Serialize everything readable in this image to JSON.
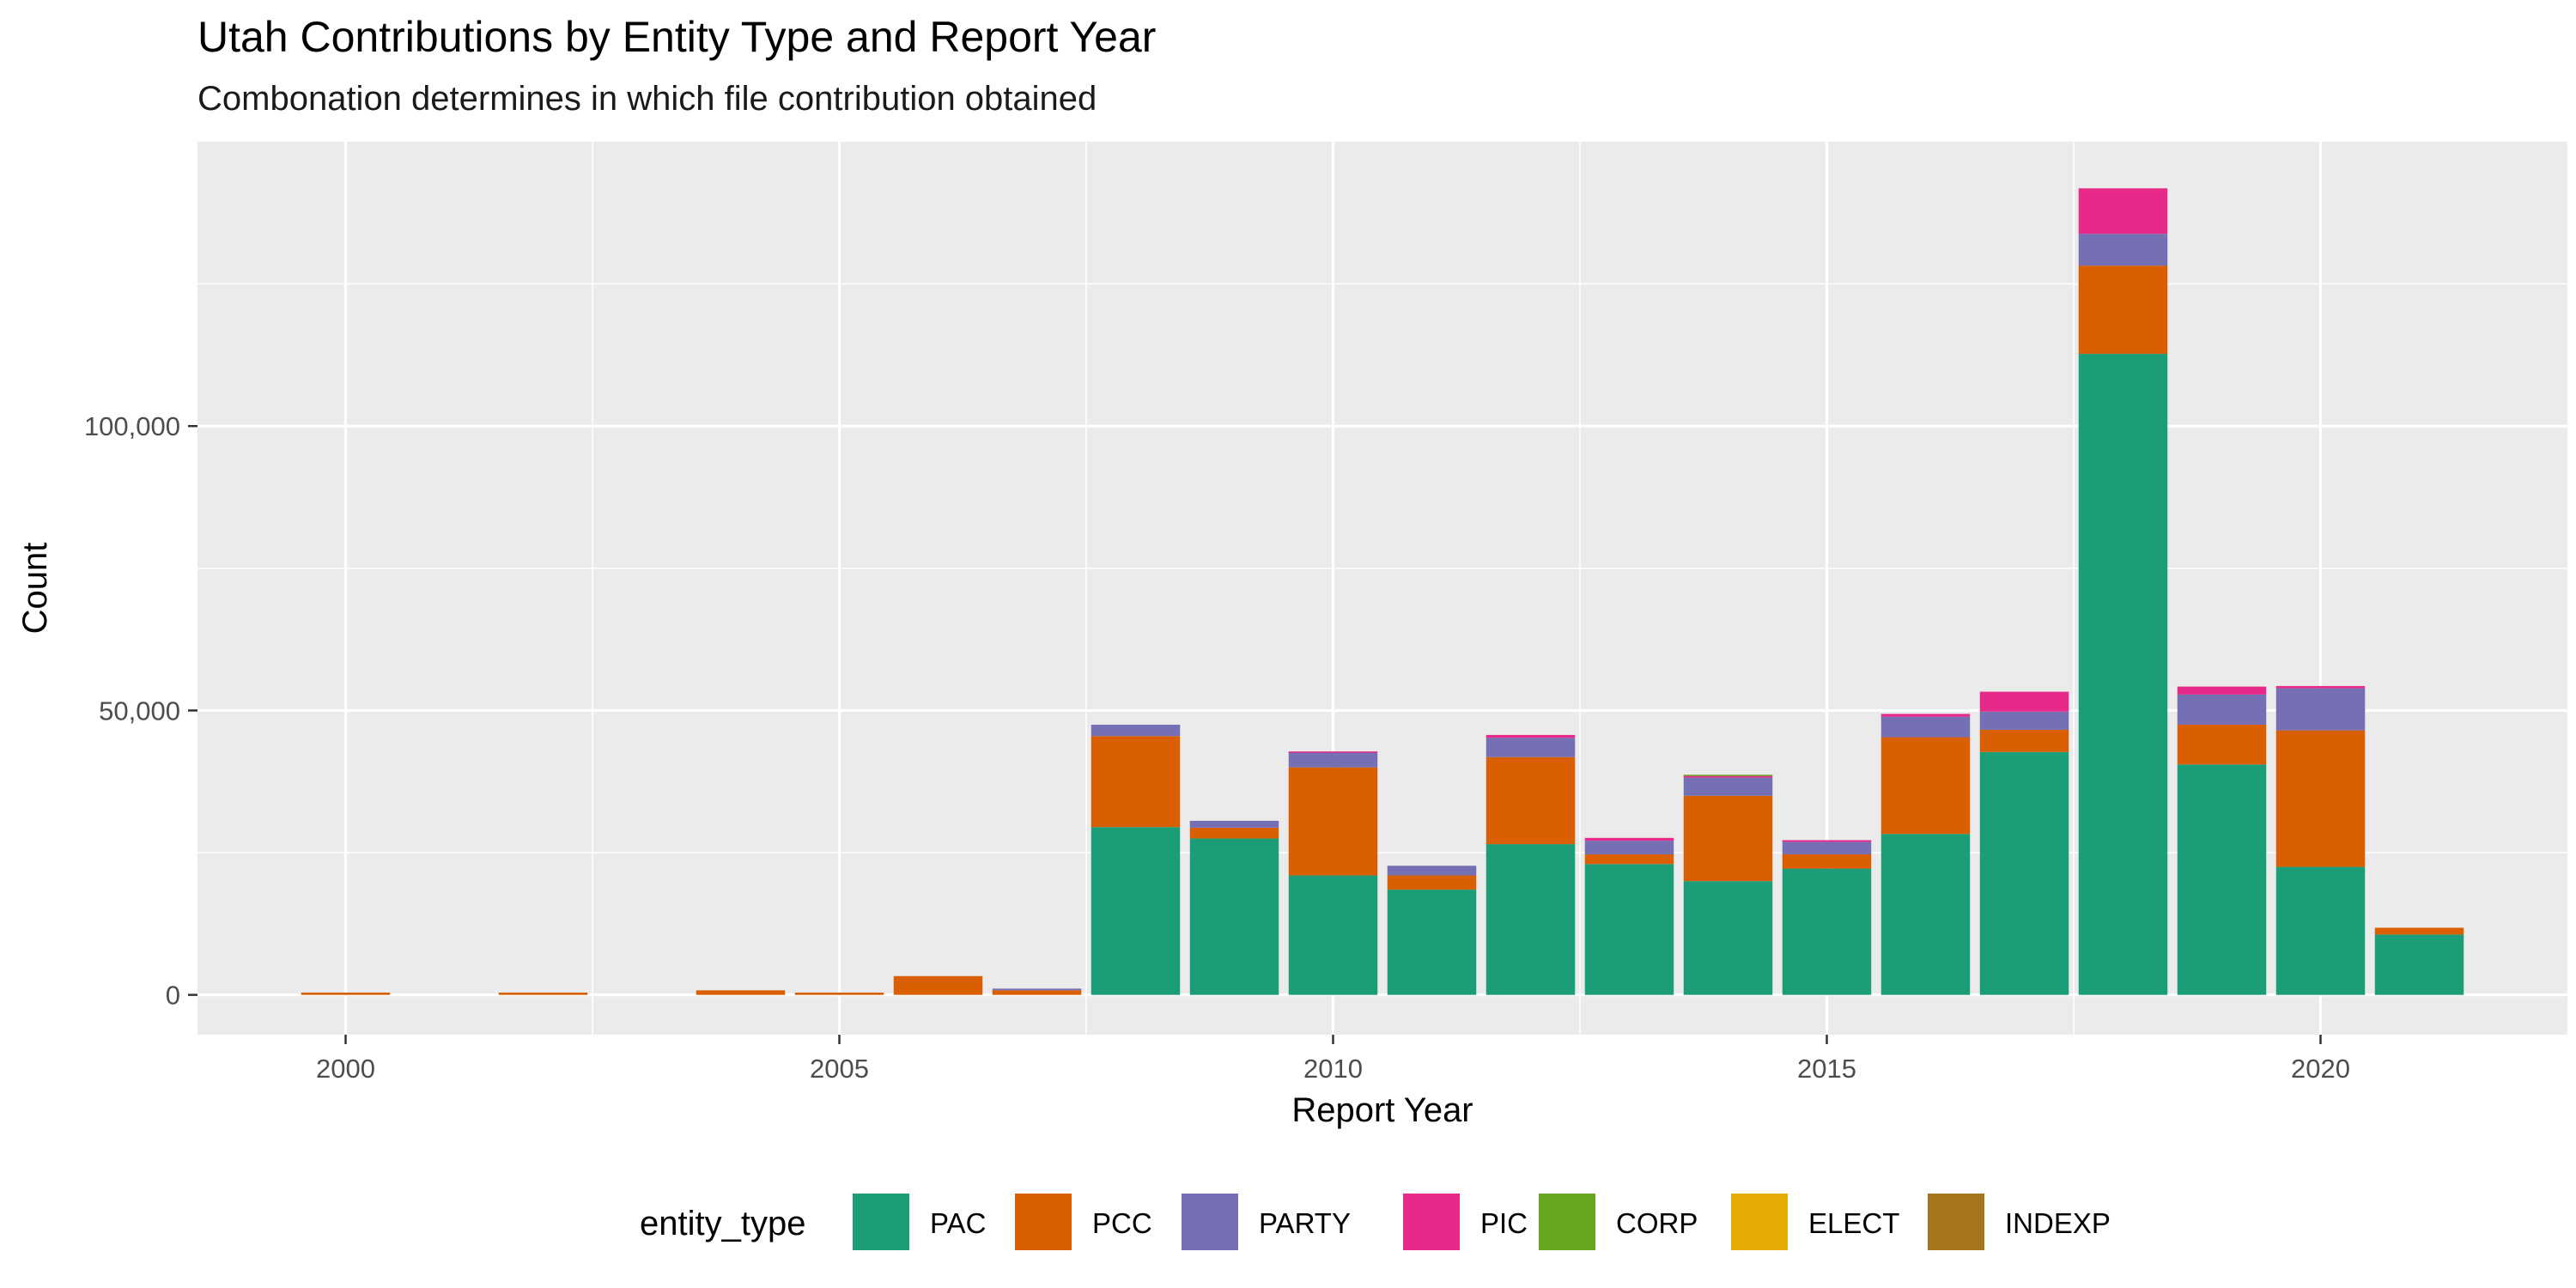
{
  "chart_data": {
    "type": "bar",
    "stacked": true,
    "title": "Utah Contributions by Entity Type and Report Year",
    "subtitle": "Combonation determines in which file contribution obtained",
    "xlabel": "Report Year",
    "ylabel": "Count",
    "xlim": [
      1998.5,
      2022.5
    ],
    "ylim": [
      -7000,
      150000
    ],
    "x_ticks": [
      2000,
      2005,
      2010,
      2015,
      2020
    ],
    "x_tick_labels": [
      "2000",
      "2005",
      "2010",
      "2015",
      "2020"
    ],
    "y_ticks": [
      0,
      50000,
      100000
    ],
    "y_tick_labels": [
      "0",
      "50,000",
      "100,000"
    ],
    "grid": true,
    "legend_title": "entity_type",
    "legend_position": "bottom",
    "x": [
      2000,
      2002,
      2004,
      2005,
      2006,
      2007,
      2008,
      2009,
      2010,
      2011,
      2012,
      2013,
      2014,
      2015,
      2016,
      2017,
      2018,
      2019,
      2020,
      2021
    ],
    "series": [
      {
        "name": "PAC",
        "color": "#1B9E77",
        "values": [
          0,
          0,
          0,
          0,
          0,
          0,
          29500,
          27500,
          21000,
          18500,
          26500,
          23000,
          20000,
          22200,
          28300,
          42700,
          112700,
          40500,
          22500,
          10600
        ]
      },
      {
        "name": "PCC",
        "color": "#D95F02",
        "values": [
          400,
          400,
          800,
          400,
          3300,
          800,
          16000,
          1900,
          19000,
          2500,
          15300,
          1700,
          15000,
          2500,
          17000,
          3900,
          15500,
          7000,
          24000,
          1200
        ]
      },
      {
        "name": "PARTY",
        "color": "#7570B3",
        "values": [
          0,
          0,
          0,
          0,
          0,
          300,
          2000,
          1200,
          2600,
          1700,
          3400,
          2400,
          3200,
          2200,
          3600,
          3200,
          5600,
          5300,
          7400,
          0
        ]
      },
      {
        "name": "PIC",
        "color": "#E7298A",
        "values": [
          0,
          0,
          0,
          0,
          0,
          0,
          0,
          0,
          200,
          0,
          500,
          500,
          300,
          300,
          500,
          3500,
          8000,
          1400,
          400,
          0
        ]
      },
      {
        "name": "CORP",
        "color": "#66A61E",
        "values": [
          0,
          0,
          0,
          0,
          0,
          0,
          0,
          0,
          0,
          0,
          0,
          0,
          200,
          0,
          0,
          0,
          0,
          0,
          0,
          0
        ]
      },
      {
        "name": "ELECT",
        "color": "#E6AB02",
        "values": [
          0,
          0,
          0,
          0,
          0,
          0,
          0,
          0,
          0,
          0,
          0,
          0,
          0,
          0,
          0,
          0,
          0,
          0,
          0,
          0
        ]
      },
      {
        "name": "INDEXP",
        "color": "#A6761D",
        "values": [
          0,
          0,
          0,
          0,
          0,
          0,
          0,
          0,
          0,
          0,
          0,
          0,
          0,
          0,
          0,
          0,
          0,
          0,
          0,
          0
        ]
      }
    ]
  }
}
